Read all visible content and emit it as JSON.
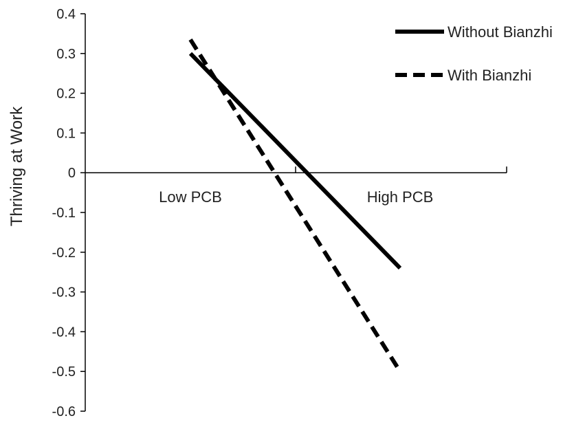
{
  "chart_data": {
    "type": "line",
    "ylabel": "Thriving at Work",
    "ylim": [
      -0.6,
      0.4
    ],
    "y_ticks": [
      "0.4",
      "0.3",
      "0.2",
      "0.1",
      "0",
      "-0.1",
      "-0.2",
      "-0.3",
      "-0.4",
      "-0.5",
      "-0.6"
    ],
    "categories": [
      "Low PCB",
      "High PCB"
    ],
    "legend_position": "top-right",
    "grid": false,
    "series": [
      {
        "name": "Without Bianzhi",
        "values": [
          0.3,
          -0.24
        ],
        "style": "solid",
        "color": "#000000"
      },
      {
        "name": "With Bianzhi",
        "values": [
          0.335,
          -0.5
        ],
        "style": "dashed",
        "color": "#000000"
      }
    ]
  }
}
